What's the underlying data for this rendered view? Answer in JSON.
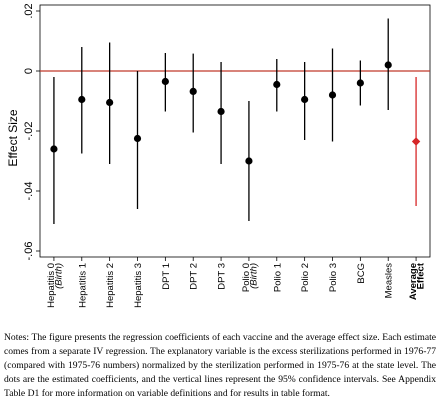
{
  "chart_data": {
    "type": "errorbar",
    "ylabel": "Effect Size",
    "ylim": [
      -0.062,
      0.022
    ],
    "yticks": [
      0.02,
      0,
      -0.02,
      -0.04,
      -0.06
    ],
    "ytick_labels": [
      ".02",
      "0",
      "-.02",
      "-.04",
      "-.06"
    ],
    "reference_line": 0,
    "reference_color": "#c0392b",
    "point_color": "#000000",
    "average_color": "#d62728",
    "grid": false,
    "categories": [
      {
        "name": "Hepatitis 0",
        "sub": "(Birth)",
        "estimate": -0.026,
        "ci_low": -0.051,
        "ci_high": -0.002,
        "bold": false
      },
      {
        "name": "Hepatitis 1",
        "sub": "",
        "estimate": -0.0095,
        "ci_low": -0.0275,
        "ci_high": 0.008,
        "bold": false
      },
      {
        "name": "Hepatitis 2",
        "sub": "",
        "estimate": -0.0105,
        "ci_low": -0.031,
        "ci_high": 0.0095,
        "bold": false
      },
      {
        "name": "Hepatitis 3",
        "sub": "",
        "estimate": -0.0225,
        "ci_low": -0.046,
        "ci_high": 0.0,
        "bold": false
      },
      {
        "name": "DPT 1",
        "sub": "",
        "estimate": -0.0035,
        "ci_low": -0.0135,
        "ci_high": 0.006,
        "bold": false
      },
      {
        "name": "DPT 2",
        "sub": "",
        "estimate": -0.0068,
        "ci_low": -0.0205,
        "ci_high": 0.0058,
        "bold": false
      },
      {
        "name": "DPT 3",
        "sub": "",
        "estimate": -0.0135,
        "ci_low": -0.031,
        "ci_high": 0.003,
        "bold": false
      },
      {
        "name": "Polio 0",
        "sub": "(Birth)",
        "estimate": -0.03,
        "ci_low": -0.05,
        "ci_high": -0.01,
        "bold": false
      },
      {
        "name": "Polio 1",
        "sub": "",
        "estimate": -0.0045,
        "ci_low": -0.0135,
        "ci_high": 0.004,
        "bold": false
      },
      {
        "name": "Polio 2",
        "sub": "",
        "estimate": -0.0095,
        "ci_low": -0.023,
        "ci_high": 0.003,
        "bold": false
      },
      {
        "name": "Polio 3",
        "sub": "",
        "estimate": -0.008,
        "ci_low": -0.0235,
        "ci_high": 0.0075,
        "bold": false
      },
      {
        "name": "BCG",
        "sub": "",
        "estimate": -0.004,
        "ci_low": -0.0115,
        "ci_high": 0.0035,
        "bold": false
      },
      {
        "name": "Measles",
        "sub": "",
        "estimate": 0.002,
        "ci_low": -0.013,
        "ci_high": 0.0175,
        "bold": false
      },
      {
        "name": "Average",
        "sub": "Effect",
        "estimate": -0.0235,
        "ci_low": -0.045,
        "ci_high": -0.002,
        "bold": true
      }
    ]
  },
  "notes": "Notes: The figure presents the regression coefficients of each vaccine and the average effect size. Each estimate comes from a separate IV regression. The explanatory variable is the excess sterilizations performed in 1976-77 (compared with 1975-76 numbers) normalized by the sterilization performed in 1975-76 at the state level. The dots are the estimated coefficients, and the vertical lines represent the 95% confidence intervals. See Appendix Table D1 for more information on variable definitions and for results in table format."
}
